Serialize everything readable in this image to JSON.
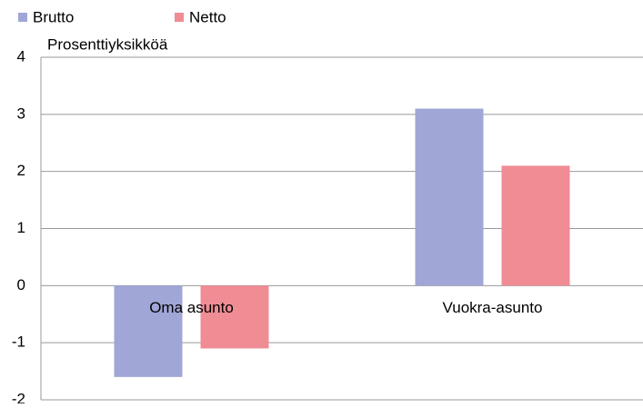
{
  "chart_data": {
    "type": "bar",
    "y_label": "Prosenttiyksikköä",
    "categories": [
      "Oma asunto",
      "Vuokra-asunto"
    ],
    "series": [
      {
        "name": "Brutto",
        "color": "#a0a6d6",
        "values": [
          -1.6,
          3.1
        ]
      },
      {
        "name": "Netto",
        "color": "#f08c94",
        "values": [
          -1.1,
          2.1
        ]
      }
    ],
    "ylim": [
      -2,
      4
    ],
    "yticks": [
      -2,
      -1,
      0,
      1,
      2,
      3,
      4
    ],
    "grid": true,
    "legend": "top-left"
  }
}
